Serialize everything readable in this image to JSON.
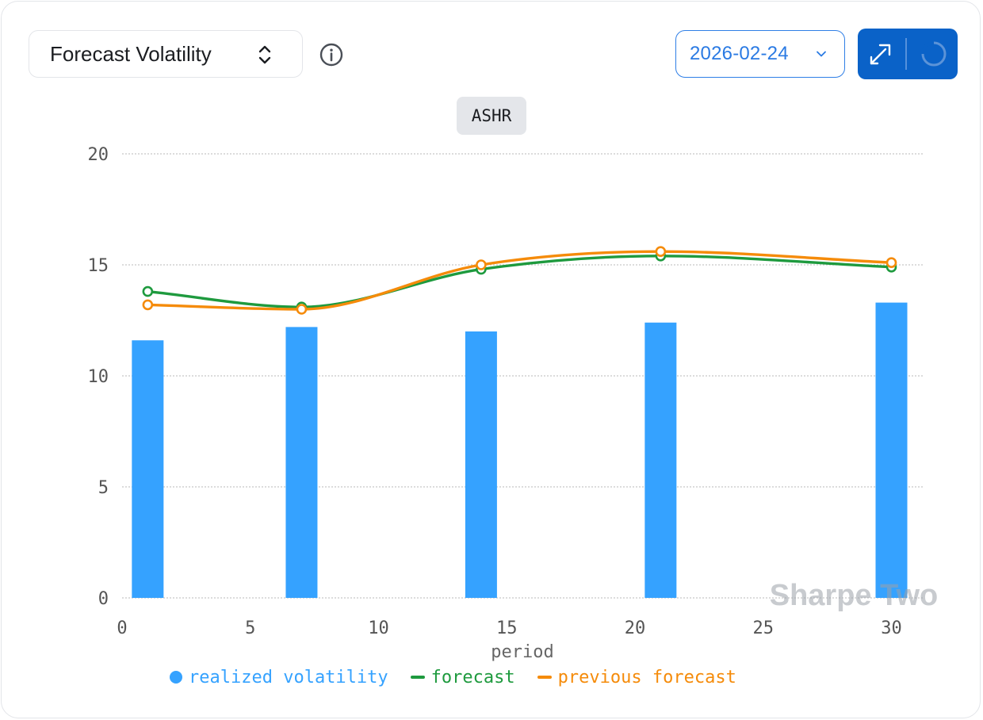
{
  "header": {
    "metric_selector": {
      "label": "Forecast Volatility",
      "icon": "chevron-up-down-icon"
    },
    "info_icon": "info-icon",
    "date_picker": {
      "value": "2026-02-24",
      "icon": "chevron-down-icon"
    },
    "actions": {
      "expand_icon": "expand-icon",
      "refresh_icon": "loading-spinner-icon"
    }
  },
  "ticker": "ASHR",
  "watermark": "Sharpe Two",
  "colors": {
    "realized": "#35a2ff",
    "forecast": "#1e9a3e",
    "previous": "#f58b0a",
    "accent": "#0a62c8",
    "grid": "#c8c8c8"
  },
  "chart_data": {
    "type": "bar",
    "title": "ASHR",
    "xlabel": "period",
    "ylabel": "",
    "xlim": [
      0,
      31
    ],
    "ylim": [
      0,
      20
    ],
    "x_ticks": [
      0,
      5,
      10,
      15,
      20,
      25,
      30
    ],
    "y_ticks": [
      0,
      5,
      10,
      15,
      20
    ],
    "grid": true,
    "legend_position": "bottom",
    "series": [
      {
        "name": "realized volatility",
        "type": "bar",
        "x": [
          1,
          7,
          14,
          21,
          30
        ],
        "values": [
          11.6,
          12.2,
          12.0,
          12.4,
          13.3
        ]
      },
      {
        "name": "forecast",
        "type": "line",
        "x": [
          1,
          7,
          14,
          21,
          30
        ],
        "values": [
          13.8,
          13.1,
          14.8,
          15.4,
          14.9
        ]
      },
      {
        "name": "previous forecast",
        "type": "line",
        "x": [
          1,
          7,
          14,
          21,
          30
        ],
        "values": [
          13.2,
          13.0,
          15.0,
          15.6,
          15.1
        ]
      }
    ]
  }
}
